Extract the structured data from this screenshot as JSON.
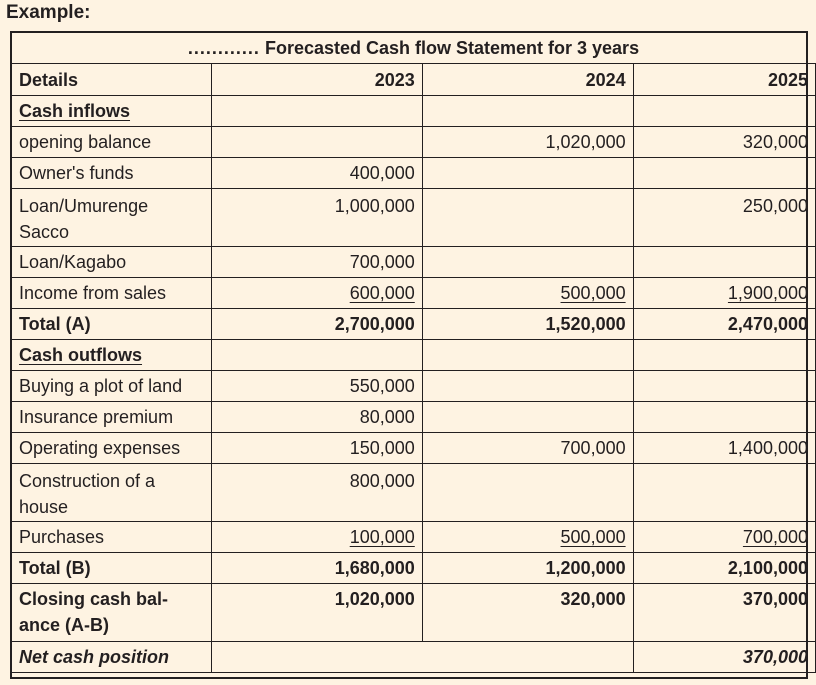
{
  "heading": "Example:",
  "table": {
    "title_dots": "............",
    "title": "Forecasted Cash flow Statement for 3 years",
    "header": {
      "details": "Details",
      "y1": "2023",
      "y2": "2024",
      "y3": "2025"
    },
    "sections": {
      "inflows": "Cash inflows",
      "outflows": "Cash outflows"
    },
    "inflow_rows": [
      {
        "label": "opening balance",
        "y1": "",
        "y2": "1,020,000",
        "y3": "320,000"
      },
      {
        "label": "Owner's funds",
        "y1": "400,000",
        "y2": "",
        "y3": ""
      },
      {
        "label": "Loan/Umurenge",
        "label2": "Sacco",
        "y1": "1,000,000",
        "y2": "",
        "y3": "250,000"
      },
      {
        "label": "Loan/Kagabo",
        "y1": "700,000",
        "y2": "",
        "y3": ""
      },
      {
        "label": "Income from sales",
        "y1": "600,000",
        "y2": "500,000",
        "y3": "1,900,000"
      }
    ],
    "total_a": {
      "label": "Total (A)",
      "y1": "2,700,000",
      "y2": "1,520,000",
      "y3": "2,470,000"
    },
    "outflow_rows": [
      {
        "label": "Buying a plot of land",
        "y1": "550,000",
        "y2": "",
        "y3": ""
      },
      {
        "label": "Insurance premium",
        "y1": "80,000",
        "y2": "",
        "y3": ""
      },
      {
        "label": "Operating expenses",
        "y1": "150,000",
        "y2": "700,000",
        "y3": "1,400,000"
      },
      {
        "label": "Construction of a",
        "label2": "house",
        "y1": "800,000",
        "y2": "",
        "y3": ""
      },
      {
        "label": "Purchases",
        "y1": "100,000",
        "y2": "500,000",
        "y3": "700,000"
      }
    ],
    "total_b": {
      "label": "Total (B)",
      "y1": "1,680,000",
      "y2": "1,200,000",
      "y3": "2,100,000"
    },
    "closing": {
      "label": "Closing cash bal-",
      "label2": "ance (A-B)",
      "y1": "1,020,000",
      "y2": "320,000",
      "y3": "370,000"
    },
    "net": {
      "label": "Net cash position",
      "y3": "370,000"
    }
  }
}
